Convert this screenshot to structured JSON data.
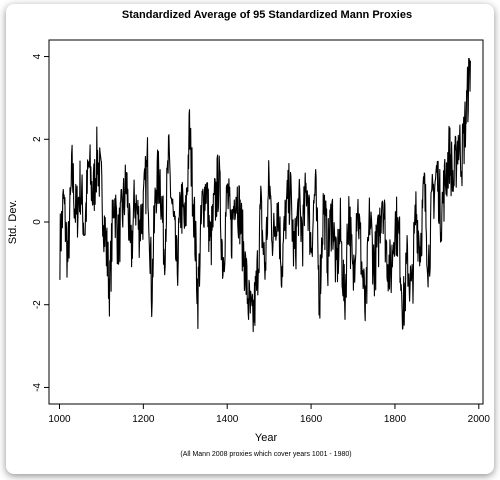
{
  "chart_data": {
    "type": "line",
    "title": "Standardized Average of 95 Standardized Mann Proxies",
    "xlabel": "Year",
    "ylabel": "Std. Dev.",
    "caption": "(All Mann 2008 proxies which cover years 1001 - 1980)",
    "xlim": [
      975,
      2010
    ],
    "ylim": [
      -4.4,
      4.4
    ],
    "x_ticks": [
      1000,
      1200,
      1400,
      1600,
      1800,
      2000
    ],
    "y_ticks": [
      -4,
      -2,
      0,
      2,
      4
    ],
    "x_tick_labels": [
      "1000",
      "1200",
      "1400",
      "1600",
      "1800",
      "2000"
    ],
    "y_tick_labels": [
      "-4",
      "-2",
      "0",
      "2",
      "4"
    ],
    "grid": false,
    "series_color": "#000000",
    "x": [
      1001,
      1010,
      1020,
      1030,
      1040,
      1050,
      1060,
      1070,
      1080,
      1090,
      1100,
      1110,
      1120,
      1130,
      1140,
      1150,
      1160,
      1170,
      1180,
      1190,
      1200,
      1210,
      1220,
      1230,
      1240,
      1250,
      1260,
      1270,
      1280,
      1290,
      1300,
      1310,
      1320,
      1330,
      1340,
      1350,
      1360,
      1370,
      1380,
      1390,
      1400,
      1410,
      1420,
      1430,
      1440,
      1450,
      1460,
      1470,
      1480,
      1490,
      1500,
      1510,
      1520,
      1530,
      1540,
      1550,
      1560,
      1570,
      1580,
      1590,
      1600,
      1610,
      1620,
      1630,
      1640,
      1650,
      1660,
      1670,
      1680,
      1690,
      1700,
      1710,
      1720,
      1730,
      1740,
      1750,
      1760,
      1770,
      1780,
      1790,
      1800,
      1810,
      1820,
      1830,
      1840,
      1850,
      1860,
      1870,
      1880,
      1890,
      1900,
      1910,
      1920,
      1930,
      1940,
      1950,
      1960,
      1970,
      1975,
      1980
    ],
    "values": [
      -0.6,
      0.5,
      -0.9,
      1.2,
      0.1,
      0.9,
      -0.2,
      1.4,
      0.6,
      1.6,
      0.8,
      -0.4,
      -1.6,
      0.7,
      -0.5,
      0.2,
      1.0,
      -0.9,
      0.6,
      -0.1,
      0.3,
      1.4,
      -1.7,
      0.9,
      1.1,
      -0.7,
      1.5,
      0.2,
      -1.2,
      0.5,
      -0.2,
      2.2,
      0.4,
      -1.8,
      0.3,
      0.9,
      -0.6,
      0.4,
      1.1,
      -1.0,
      0.7,
      -0.3,
      0.9,
      0.2,
      -0.8,
      -1.9,
      -2.5,
      -1.6,
      0.3,
      -1.2,
      1.0,
      -0.5,
      0.6,
      -1.1,
      0.2,
      0.8,
      -0.9,
      0.4,
      -0.3,
      1.0,
      -0.6,
      0.9,
      -1.8,
      0.5,
      -0.8,
      0.3,
      -1.2,
      -0.2,
      -2.0,
      0.4,
      -1.5,
      0.6,
      -0.9,
      -2.3,
      0.2,
      -1.1,
      -0.5,
      0.8,
      -0.7,
      -1.3,
      0.1,
      -0.4,
      -2.2,
      -0.9,
      -1.8,
      0.3,
      -0.6,
      0.8,
      -1.0,
      0.6,
      1.2,
      0.2,
      1.0,
      1.7,
      0.9,
      2.0,
      1.6,
      2.6,
      3.3,
      3.9
    ]
  }
}
